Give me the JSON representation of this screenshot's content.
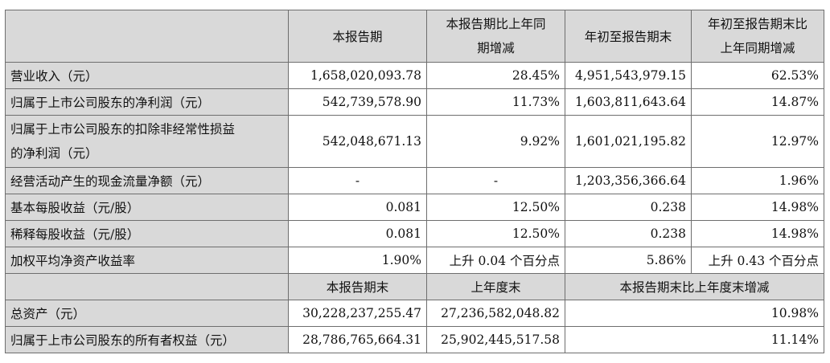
{
  "header": {
    "label_col": "",
    "col1": "本报告期",
    "col2_line1": "本报告期比上年同",
    "col2_line2": "期增减",
    "col3": "年初至报告期末",
    "col4_line1": "年初至报告期末比",
    "col4_line2": "上年同期增减"
  },
  "rows": [
    {
      "label": "营业收入（元）",
      "c1": "1,658,020,093.78",
      "c2": "28.45%",
      "c3": "4,951,543,979.15",
      "c4": "62.53%"
    },
    {
      "label": "归属于上市公司股东的净利润（元）",
      "c1": "542,739,578.90",
      "c2": "11.73%",
      "c3": "1,603,811,643.64",
      "c4": "14.87%"
    },
    {
      "label_line1": "归属于上市公司股东的扣除非经常性损益",
      "label_line2": "的净利润（元）",
      "c1": "542,048,671.13",
      "c2": "9.92%",
      "c3": "1,601,021,195.82",
      "c4": "12.97%"
    },
    {
      "label": "经营活动产生的现金流量净额（元）",
      "c1": "-",
      "c2": "-",
      "c3": "1,203,356,366.64",
      "c4": "1.96%"
    },
    {
      "label": "基本每股收益（元/股）",
      "c1": "0.081",
      "c2": "12.50%",
      "c3": "0.238",
      "c4": "14.98%"
    },
    {
      "label": "稀释每股收益（元/股）",
      "c1": "0.081",
      "c2": "12.50%",
      "c3": "0.238",
      "c4": "14.98%"
    },
    {
      "label": "加权平均净资产收益率",
      "c1": "1.90%",
      "c2": "上升 0.04 个百分点",
      "c3": "5.86%",
      "c4": "上升 0.43 个百分点"
    }
  ],
  "subheader": {
    "col1": "本报告期末",
    "col2": "上年度末",
    "col34": "本报告期末比上年度末增减"
  },
  "bottom_rows": [
    {
      "label": "总资产（元）",
      "c1": "30,228,237,255.47",
      "c2": "27,236,582,048.82",
      "c34": "10.98%"
    },
    {
      "label": "归属于上市公司股东的所有者权益（元）",
      "c1": "28,786,765,664.31",
      "c2": "25,902,445,517.58",
      "c34": "11.14%"
    }
  ]
}
